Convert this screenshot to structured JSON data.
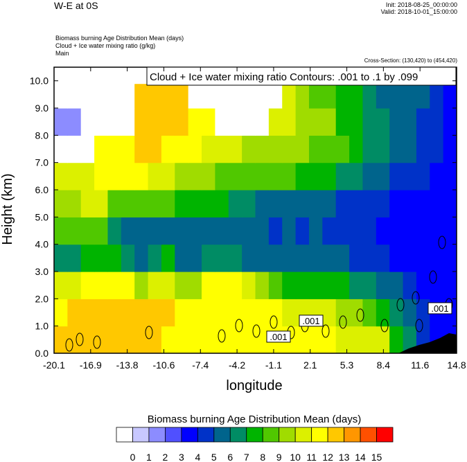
{
  "header": {
    "title": "W-E at 0S",
    "init": "Init: 2018-08-25_00:00:00",
    "valid": "Valid: 2018-10-01_15:00:00",
    "line1": "Biomass burning Age Distribution Mean   (days)",
    "line2": "Cloud + Ice water mixing ratio   (g/kg)",
    "line3": "Main",
    "cross_section": "Cross-Section: (130,420) to (454,420)"
  },
  "colors": {
    "scale": [
      "#ffffff",
      "#c8c8ff",
      "#8c8cff",
      "#5050ff",
      "#0000ff",
      "#0032c8",
      "#00648c",
      "#008c64",
      "#00b400",
      "#50c800",
      "#a0dc00",
      "#dcf000",
      "#ffff00",
      "#ffc800",
      "#ff9600",
      "#ff5000",
      "#ff0000"
    ],
    "terrain": "#000000"
  },
  "chart_data": {
    "type": "heatmap",
    "title": "",
    "contour_label": "Cloud + Ice water mixing ratio Contours: .001 to .1 by .099",
    "contour_values": [
      ".001",
      ".001",
      ".001"
    ],
    "xlabel": "longitude",
    "ylabel": "Height (km)",
    "xticks": [
      "-20.1",
      "-16.9",
      "-13.8",
      "-10.6",
      "-7.4",
      "-4.2",
      "-1.1",
      "2.1",
      "5.3",
      "8.4",
      "11.6",
      "14.8"
    ],
    "yticks": [
      "0.0",
      "1.0",
      "2.0",
      "3.0",
      "4.0",
      "5.0",
      "6.0",
      "7.0",
      "8.0",
      "9.0",
      "10.0"
    ],
    "xlim": [
      -20.1,
      14.8
    ],
    "ylim": [
      0,
      10.5
    ],
    "colorbar": {
      "title": "Biomass burning Age Distribution Mean  (days)",
      "labels": [
        "0",
        "1",
        "2",
        "3",
        "4",
        "5",
        "6",
        "7",
        "8",
        "9",
        "10",
        "11",
        "12",
        "13",
        "14",
        "15"
      ]
    },
    "field_description_rows": [
      {
        "height_km": 0.5,
        "values": [
          13,
          13,
          13,
          13,
          13,
          13,
          13,
          13,
          12,
          12,
          12,
          12,
          12,
          12,
          12,
          12,
          12,
          12,
          12,
          12,
          12,
          11,
          11,
          11,
          11,
          8,
          7,
          5,
          4,
          4
        ]
      },
      {
        "height_km": 1.5,
        "values": [
          12,
          13,
          13,
          13,
          13,
          13,
          13,
          13,
          13,
          12,
          12,
          12,
          12,
          12,
          12,
          12,
          12,
          11,
          11,
          11,
          11,
          10,
          10,
          9,
          8,
          7,
          6,
          5,
          4,
          4
        ]
      },
      {
        "height_km": 2.5,
        "values": [
          11,
          11,
          12,
          12,
          12,
          12,
          10,
          11,
          11,
          10,
          10,
          12,
          12,
          12,
          11,
          10,
          9,
          8,
          8,
          8,
          8,
          8,
          7,
          7,
          6,
          6,
          5,
          4,
          4,
          4
        ]
      },
      {
        "height_km": 3.5,
        "values": [
          7,
          7,
          8,
          8,
          8,
          7,
          6,
          7,
          8,
          6,
          6,
          7,
          7,
          7,
          6,
          6,
          6,
          6,
          6,
          6,
          6,
          6,
          5,
          5,
          5,
          4,
          4,
          4,
          4,
          4
        ]
      },
      {
        "height_km": 4.5,
        "values": [
          9,
          9,
          9,
          9,
          7,
          6,
          6,
          6,
          6,
          6,
          6,
          6,
          6,
          6,
          6,
          6,
          5,
          6,
          5,
          6,
          5,
          5,
          5,
          5,
          4,
          4,
          4,
          4,
          4,
          4
        ]
      },
      {
        "height_km": 5.5,
        "values": [
          10,
          10,
          11,
          11,
          9,
          9,
          9,
          9,
          9,
          8,
          8,
          8,
          8,
          7,
          7,
          6,
          6,
          6,
          6,
          6,
          6,
          5,
          5,
          5,
          5,
          4,
          4,
          4,
          4,
          4
        ]
      },
      {
        "height_km": 6.5,
        "values": [
          11,
          11,
          11,
          12,
          12,
          12,
          12,
          11,
          11,
          10,
          10,
          10,
          9,
          9,
          9,
          9,
          9,
          9,
          8,
          8,
          8,
          7,
          7,
          6,
          6,
          5,
          5,
          5,
          4,
          4
        ]
      },
      {
        "height_km": 7.5,
        "values": [
          0,
          0,
          0,
          12,
          12,
          12,
          13,
          13,
          12,
          12,
          12,
          11,
          11,
          11,
          10,
          10,
          10,
          10,
          10,
          9,
          9,
          9,
          8,
          7,
          7,
          6,
          6,
          5,
          5,
          4
        ]
      },
      {
        "height_km": 8.5,
        "values": [
          2,
          2,
          0,
          0,
          0,
          0,
          13,
          13,
          13,
          13,
          12,
          12,
          0,
          0,
          0,
          0,
          11,
          11,
          10,
          10,
          10,
          8,
          8,
          7,
          7,
          6,
          6,
          5,
          5,
          4
        ]
      },
      {
        "height_km": 9.5,
        "values": [
          0,
          0,
          0,
          0,
          0,
          0,
          13,
          13,
          13,
          13,
          0,
          0,
          0,
          0,
          0,
          0,
          0,
          11,
          10,
          9,
          9,
          8,
          8,
          7,
          6,
          6,
          6,
          6,
          5,
          4
        ]
      },
      {
        "height_km": 10.3,
        "values": [
          0,
          0,
          0,
          0,
          0,
          0,
          0,
          13,
          13,
          0,
          0,
          0,
          0,
          0,
          0,
          0,
          0,
          0,
          0,
          0,
          11,
          7,
          7,
          6,
          6,
          6,
          6,
          5,
          5,
          4
        ]
      }
    ]
  }
}
